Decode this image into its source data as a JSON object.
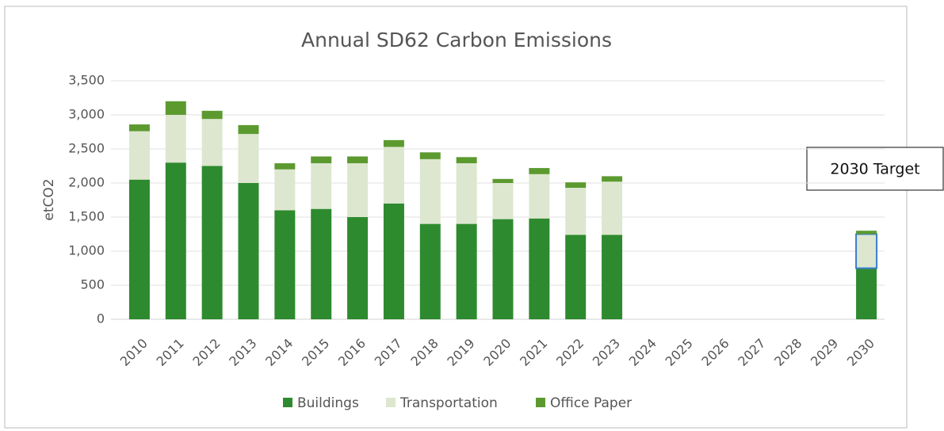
{
  "chart_data": {
    "type": "stacked_bar",
    "title": "Annual SD62 Carbon Emissions",
    "y_label": "etCO2",
    "categories": [
      "2010",
      "2011",
      "2012",
      "2013",
      "2014",
      "2015",
      "2016",
      "2017",
      "2018",
      "2019",
      "2020",
      "2021",
      "2022",
      "2023",
      "2024",
      "2025",
      "2026",
      "2027",
      "2028",
      "2029",
      "2030"
    ],
    "series": [
      {
        "name": "Buildings",
        "color": "#2e8a2e",
        "values": [
          2050,
          2300,
          2250,
          2000,
          1600,
          1620,
          1500,
          1700,
          1400,
          1400,
          1470,
          1480,
          1240,
          1240,
          null,
          null,
          null,
          null,
          null,
          null,
          750
        ]
      },
      {
        "name": "Transportation",
        "color": "#dde7cf",
        "values": [
          710,
          700,
          690,
          720,
          600,
          670,
          790,
          830,
          950,
          890,
          530,
          650,
          690,
          780,
          null,
          null,
          null,
          null,
          null,
          null,
          500
        ]
      },
      {
        "name": "Office Paper",
        "color": "#5c9a30",
        "values": [
          100,
          200,
          120,
          130,
          90,
          100,
          100,
          100,
          100,
          90,
          60,
          90,
          80,
          80,
          null,
          null,
          null,
          null,
          null,
          null,
          50
        ]
      }
    ],
    "ylim": [
      0,
      3500
    ],
    "yticks": [
      0,
      500,
      {
        "value": 1000,
        "label": "1,000"
      },
      {
        "value": 1500,
        "label": "1,500"
      },
      {
        "value": 2000,
        "label": "2,000"
      },
      {
        "value": 2500,
        "label": "2,500"
      },
      {
        "value": 3000,
        "label": "3,000"
      },
      {
        "value": 3500,
        "label": "3,500"
      }
    ],
    "grid": true,
    "legend": "bottom",
    "annotations": [
      {
        "text": "2030 Target"
      }
    ]
  }
}
